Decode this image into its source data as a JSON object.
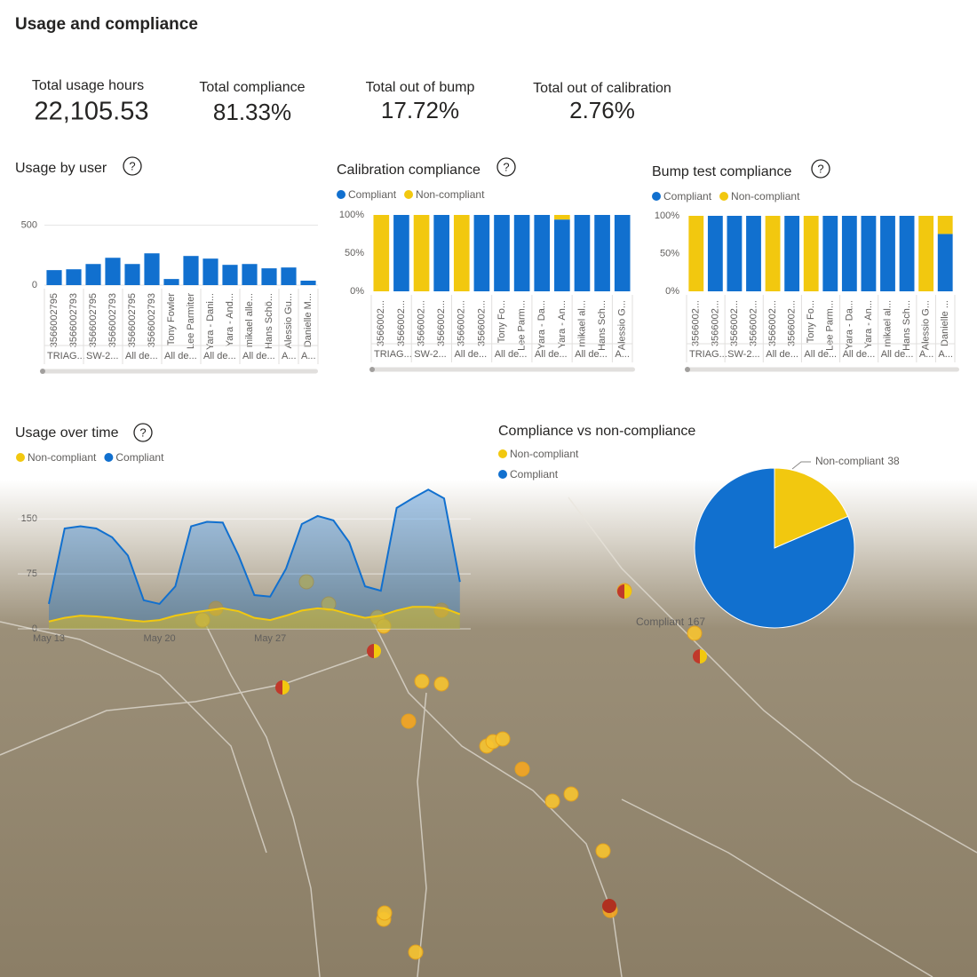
{
  "title": "Usage and compliance",
  "help_icon": "?",
  "kpis": [
    {
      "label": "Total usage hours",
      "value": "22,105.53"
    },
    {
      "label": "Total compliance",
      "value": "81.33%"
    },
    {
      "label": "Total out of bump",
      "value": "17.72%"
    },
    {
      "label": "Total out of calibration",
      "value": "2.76%"
    }
  ],
  "chart_data": [
    {
      "type": "bar",
      "title": "Usage by user",
      "categories": [
        "3566002795",
        "3566002793",
        "3566002795",
        "3566002793",
        "3566002795",
        "3566002793",
        "Tony Fowler",
        "Lee Parmiter",
        "Yara - Dani...",
        "Yara - And...",
        "mikael alle...",
        "Hans Schö...",
        "Alessio Gu...",
        "Danielle M..."
      ],
      "groups": [
        "TRIAG...",
        null,
        "SW-2...",
        null,
        "All de...",
        null,
        "All de...",
        null,
        "All de...",
        null,
        "All de...",
        null,
        "A...",
        "A..."
      ],
      "values": [
        125,
        132,
        176,
        228,
        176,
        265,
        51,
        243,
        221,
        169,
        176,
        140,
        147,
        37
      ],
      "color": "#1170cf",
      "ylim": [
        0,
        600
      ],
      "yticks": [
        0,
        500
      ],
      "grid": true
    },
    {
      "type": "bar",
      "title": "Calibration compliance",
      "stacked": true,
      "categories": [
        "3566002...",
        "3566002...",
        "3566002...",
        "3566002...",
        "3566002...",
        "3566002...",
        "Tony Fo...",
        "Lee Parm...",
        "Yara - Da...",
        "Yara - An...",
        "mikael al...",
        "Hans Sch...",
        "Alessio G..."
      ],
      "groups": [
        "TRIAG...",
        null,
        "SW-2...",
        null,
        "All de...",
        null,
        "All de...",
        null,
        "All de...",
        null,
        "All de...",
        null,
        "A..."
      ],
      "series": [
        {
          "name": "Compliant",
          "color": "#1170cf",
          "values": [
            0,
            100,
            0,
            100,
            0,
            100,
            100,
            100,
            100,
            94,
            100,
            100,
            100
          ]
        },
        {
          "name": "Non-compliant",
          "color": "#f2c80f",
          "values": [
            100,
            0,
            100,
            0,
            100,
            0,
            0,
            0,
            0,
            6,
            0,
            0,
            0
          ]
        }
      ],
      "ylim": [
        0,
        100
      ],
      "yticks": [
        {
          "value": 0,
          "label": "0%"
        },
        {
          "value": 50,
          "label": "50%"
        },
        {
          "value": 100,
          "label": "100%"
        }
      ],
      "grid": false
    },
    {
      "type": "bar",
      "title": "Bump test compliance",
      "stacked": true,
      "categories": [
        "3566002...",
        "3566002...",
        "3566002...",
        "3566002...",
        "3566002...",
        "3566002...",
        "Tony Fo...",
        "Lee Parm...",
        "Yara - Da...",
        "Yara - An...",
        "mikael al...",
        "Hans Sch...",
        "Alessio G...",
        "Danielle ..."
      ],
      "groups": [
        "TRIAG...",
        null,
        "SW-2...",
        null,
        "All de...",
        null,
        "All de...",
        null,
        "All de...",
        null,
        "All de...",
        null,
        "A...",
        "A..."
      ],
      "series": [
        {
          "name": "Compliant",
          "color": "#1170cf",
          "values": [
            0,
            100,
            100,
            100,
            0,
            100,
            0,
            100,
            100,
            100,
            100,
            100,
            0,
            76
          ]
        },
        {
          "name": "Non-compliant",
          "color": "#f2c80f",
          "values": [
            100,
            0,
            0,
            0,
            100,
            0,
            100,
            0,
            0,
            0,
            0,
            0,
            100,
            24
          ]
        }
      ],
      "ylim": [
        0,
        100
      ],
      "yticks": [
        {
          "value": 0,
          "label": "0%"
        },
        {
          "value": 50,
          "label": "50%"
        },
        {
          "value": 100,
          "label": "100%"
        }
      ],
      "grid": false
    },
    {
      "type": "area",
      "title": "Usage over time",
      "categories": [
        "May 13",
        null,
        null,
        null,
        null,
        null,
        null,
        "May 20",
        null,
        null,
        null,
        null,
        null,
        null,
        "May 27",
        null,
        null,
        null,
        null,
        null,
        null,
        null,
        null,
        null,
        null,
        null,
        null
      ],
      "series": [
        {
          "name": "Non-compliant",
          "color": "#f2c80f",
          "values": [
            10,
            15,
            18,
            17,
            15,
            12,
            10,
            12,
            18,
            22,
            25,
            28,
            24,
            15,
            12,
            18,
            25,
            28,
            26,
            20,
            15,
            18,
            25,
            30,
            30,
            28,
            20
          ]
        },
        {
          "name": "Compliant",
          "color": "#1170cf",
          "values": [
            34,
            137,
            140,
            137,
            125,
            100,
            39,
            34,
            58,
            140,
            146,
            145,
            100,
            46,
            44,
            82,
            143,
            154,
            148,
            118,
            58,
            52,
            165,
            178,
            190,
            178,
            64
          ]
        }
      ],
      "ylim": [
        0,
        200
      ],
      "yticks": [
        0,
        75,
        150
      ],
      "grid": true
    },
    {
      "type": "pie",
      "title": "Compliance vs non-compliance",
      "categories": [
        "Non-compliant",
        "Compliant"
      ],
      "values": [
        38,
        167
      ],
      "colors": [
        "#f2c80f",
        "#1170cf"
      ]
    }
  ]
}
